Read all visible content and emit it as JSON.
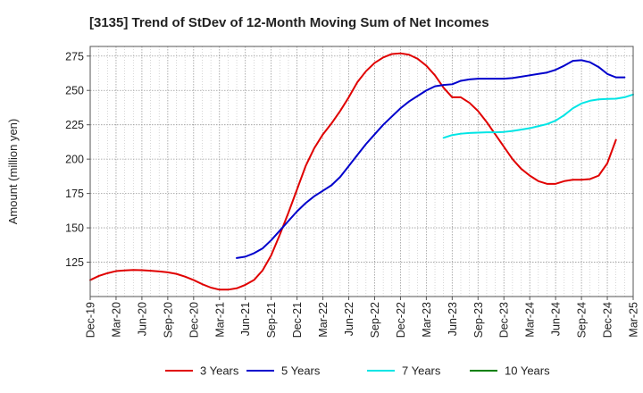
{
  "chart_data": {
    "type": "line",
    "title": "[3135]  Trend of StDev of 12-Month Moving Sum of Net Incomes",
    "xlabel": "",
    "ylabel": "Amount (million yen)",
    "ylim": [
      100,
      282
    ],
    "yticks": [
      125,
      150,
      175,
      200,
      225,
      250,
      275
    ],
    "xticks": [
      "Dec-19",
      "Mar-20",
      "Jun-20",
      "Sep-20",
      "Dec-20",
      "Mar-21",
      "Jun-21",
      "Sep-21",
      "Dec-21",
      "Mar-22",
      "Jun-22",
      "Sep-22",
      "Dec-22",
      "Mar-23",
      "Jun-23",
      "Sep-23",
      "Dec-23",
      "Mar-24",
      "Jun-24",
      "Sep-24",
      "Dec-24",
      "Mar-25"
    ],
    "grid": true,
    "legend_position": "bottom",
    "series": [
      {
        "name": "3 Years",
        "color": "#e00000",
        "start": "Dec-19",
        "values": [
          112,
          115,
          117,
          118.5,
          119,
          119.3,
          119.2,
          118.8,
          118.3,
          117.6,
          116.5,
          114.5,
          112,
          109,
          106.5,
          105,
          105,
          106,
          108.5,
          112,
          119,
          130,
          145,
          161,
          178,
          195,
          208,
          218,
          226,
          235,
          245,
          256,
          264,
          270,
          274,
          276.5,
          277,
          276,
          273,
          268,
          261,
          252,
          245,
          245,
          241,
          235,
          227,
          218,
          209,
          200,
          193,
          188,
          184,
          182,
          182,
          184,
          185,
          185,
          185.5,
          188,
          197,
          214
        ]
      },
      {
        "name": "5 Years",
        "color": "#0000cc",
        "start": "May-21",
        "values": [
          128,
          129,
          131.5,
          135,
          141,
          148,
          155,
          162,
          168,
          173,
          177,
          181,
          187,
          195,
          203,
          211,
          218,
          225,
          231,
          237,
          242,
          246,
          250,
          253,
          254,
          254.5,
          257,
          258,
          258.5,
          258.5,
          258.5,
          258.5,
          259,
          260,
          261,
          262,
          263,
          265,
          268,
          271.5,
          272,
          270.5,
          267,
          262,
          259.5,
          259.5
        ]
      },
      {
        "name": "7 Years",
        "color": "#00e5e5",
        "start": "May-23",
        "values": [
          215.5,
          217.5,
          218.5,
          219,
          219.3,
          219.5,
          219.5,
          219.8,
          220.5,
          221.5,
          222.5,
          224,
          225.5,
          228,
          232,
          237,
          240.5,
          242.5,
          243.5,
          243.8,
          244,
          245,
          247
        ]
      },
      {
        "name": "10 Years",
        "color": "#008000",
        "start": "",
        "values": []
      }
    ]
  }
}
